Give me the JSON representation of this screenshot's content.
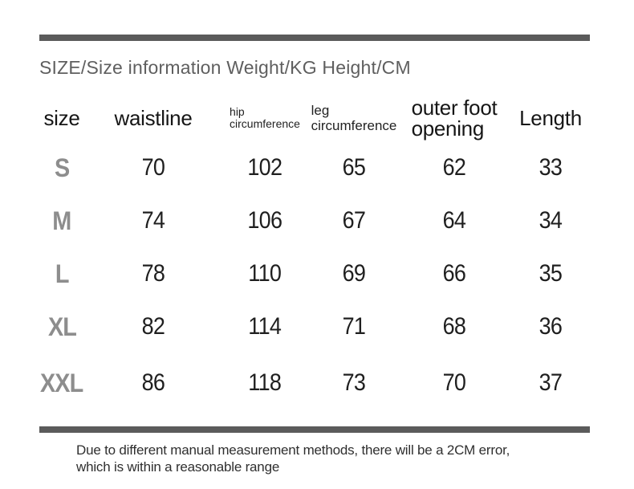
{
  "title": "SIZE/Size information Weight/KG Height/CM",
  "colors": {
    "divider_bar": "#5b5b5b",
    "title_text": "#5f5f5f",
    "size_label_text": "#8d8d8d",
    "value_text": "#1f1f1f",
    "header_text": "#161616",
    "note_text": "#2f2f2f",
    "background": "#ffffff"
  },
  "table": {
    "columns": [
      {
        "label": "size",
        "lines": [
          "size"
        ]
      },
      {
        "label": "waistline",
        "lines": [
          "waistline"
        ]
      },
      {
        "label": "hip circumference",
        "lines": [
          "hip",
          "circumference"
        ]
      },
      {
        "label": "leg circumference",
        "lines": [
          "leg",
          "circumference"
        ]
      },
      {
        "label": "outer foot opening",
        "lines": [
          "outer foot",
          "opening"
        ]
      },
      {
        "label": "Length",
        "lines": [
          "Length"
        ]
      }
    ],
    "rows": [
      {
        "size": "S",
        "values": [
          "70",
          "102",
          "65",
          "62",
          "33"
        ]
      },
      {
        "size": "M",
        "values": [
          "74",
          "106",
          "67",
          "64",
          "34"
        ]
      },
      {
        "size": "L",
        "values": [
          "78",
          "110",
          "69",
          "66",
          "35"
        ]
      },
      {
        "size": "XL",
        "values": [
          "82",
          "114",
          "71",
          "68",
          "36"
        ]
      },
      {
        "size": "XXL",
        "values": [
          "86",
          "118",
          "73",
          "70",
          "37"
        ]
      }
    ]
  },
  "note": {
    "line1": "Due to different manual measurement methods, there will be a 2CM error,",
    "line2": "which is within a reasonable range"
  }
}
